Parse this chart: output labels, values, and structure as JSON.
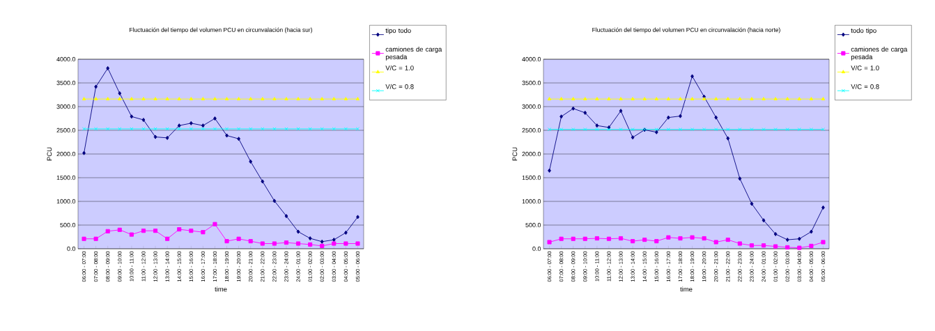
{
  "chart_data": [
    {
      "type": "line",
      "title": "Fluctuación del tiempo del volumen PCU en circunvalación (hacia sur)",
      "xlabel": "time",
      "ylabel": "PCU",
      "categories": [
        "06:00 - 07:00",
        "07:00 - 08:00",
        "08:00 - 09:00",
        "09:00 - 10:00",
        "10:00 - 11:00",
        "11:00 - 12:00",
        "12:00 - 13:00",
        "13:00 - 14:00",
        "14:00 - 15:00",
        "15:00 - 16:00",
        "16:00 - 17:00",
        "17:00 - 18:00",
        "18:00 - 19:00",
        "19:00 - 20:00",
        "20:00 - 21:00",
        "21:00 - 22:00",
        "22:00 - 23:00",
        "23:00 - 24:00",
        "24:00 - 01:00",
        "01:00 - 02:00",
        "02:00 - 03:00",
        "03:00 - 04:00",
        "04:00 - 05:00",
        "05:00 - 06:00"
      ],
      "series": [
        {
          "name": "tipo todo",
          "color": "#000080",
          "marker": "diamond",
          "values": [
            2020,
            3420,
            3810,
            3280,
            2790,
            2720,
            2360,
            2340,
            2600,
            2650,
            2600,
            2750,
            2390,
            2320,
            1840,
            1420,
            1010,
            690,
            360,
            220,
            150,
            190,
            340,
            670
          ]
        },
        {
          "name": "camiones de carga pesada",
          "color": "#ff00ff",
          "marker": "square",
          "values": [
            210,
            210,
            370,
            400,
            300,
            380,
            380,
            210,
            410,
            380,
            350,
            520,
            160,
            210,
            160,
            110,
            110,
            130,
            110,
            90,
            60,
            110,
            110,
            110
          ]
        },
        {
          "name": "V/C = 1.0",
          "color": "#ffff00",
          "marker": "triangle",
          "values": [
            3160,
            3160,
            3160,
            3160,
            3160,
            3160,
            3160,
            3160,
            3160,
            3160,
            3160,
            3160,
            3160,
            3160,
            3160,
            3160,
            3160,
            3160,
            3160,
            3160,
            3160,
            3160,
            3160,
            3160
          ]
        },
        {
          "name": "V/C = 0.8",
          "color": "#00ffff",
          "marker": "cross",
          "values": [
            2530,
            2530,
            2530,
            2530,
            2530,
            2530,
            2530,
            2530,
            2530,
            2530,
            2530,
            2530,
            2530,
            2530,
            2530,
            2530,
            2530,
            2530,
            2530,
            2530,
            2530,
            2530,
            2530,
            2530
          ]
        }
      ],
      "ylim": [
        0,
        4000
      ],
      "yticks": [
        {
          "value": 0,
          "label": "0.0"
        },
        {
          "value": 500,
          "label": "500.0"
        },
        {
          "value": 1000,
          "label": "1000.0"
        },
        {
          "value": 1500,
          "label": "1500.0"
        },
        {
          "value": 2000,
          "label": "2000.0"
        },
        {
          "value": 2500,
          "label": "2500.0"
        },
        {
          "value": 3000,
          "label": "3000.0"
        },
        {
          "value": 3500,
          "label": "3500.0"
        },
        {
          "value": 4000,
          "label": "4000.0"
        }
      ],
      "grid": "y",
      "legend": "top right"
    },
    {
      "type": "line",
      "title": "Fluctuación del tiempo del volumen PCU en circunvalación (hacia norte)",
      "xlabel": "time",
      "ylabel": "PCU",
      "categories": [
        "06:00 - 07:00",
        "07:00 - 08:00",
        "08:00 - 09:00",
        "09:00 - 10:00",
        "10:00 - 11:00",
        "11:00 - 12:00",
        "12:00 - 13:00",
        "13:00 - 14:00",
        "14:00 - 15:00",
        "15:00 - 16:00",
        "16:00 - 17:00",
        "17:00 - 18:00",
        "18:00 - 19:00",
        "19:00 - 20:00",
        "20:00 - 21:00",
        "21:00 - 22:00",
        "22:00 - 23:00",
        "23:00 - 24:00",
        "24:00 - 01:00",
        "01:00 - 02:00",
        "02:00 - 03:00",
        "03:00 - 04:00",
        "04:00 - 05:00",
        "05:00 - 06:00"
      ],
      "series": [
        {
          "name": "todo tipo",
          "color": "#000080",
          "marker": "diamond",
          "values": [
            1650,
            2790,
            2960,
            2870,
            2600,
            2560,
            2910,
            2350,
            2510,
            2460,
            2770,
            2800,
            3640,
            3210,
            2770,
            2330,
            1480,
            950,
            600,
            310,
            190,
            210,
            360,
            870
          ]
        },
        {
          "name": "camiones de carga pesada",
          "color": "#ff00ff",
          "marker": "square",
          "values": [
            140,
            210,
            210,
            210,
            220,
            210,
            220,
            160,
            190,
            160,
            240,
            220,
            240,
            220,
            140,
            190,
            110,
            70,
            70,
            50,
            30,
            20,
            60,
            140
          ]
        },
        {
          "name": "V/C = 1.0",
          "color": "#ffff00",
          "marker": "triangle",
          "values": [
            3160,
            3160,
            3160,
            3160,
            3160,
            3160,
            3160,
            3160,
            3160,
            3160,
            3160,
            3160,
            3160,
            3160,
            3160,
            3160,
            3160,
            3160,
            3160,
            3160,
            3160,
            3160,
            3160,
            3160
          ]
        },
        {
          "name": "V/C = 0.8",
          "color": "#00ffff",
          "marker": "cross",
          "values": [
            2520,
            2520,
            2520,
            2520,
            2520,
            2520,
            2520,
            2520,
            2520,
            2520,
            2520,
            2520,
            2520,
            2520,
            2520,
            2520,
            2520,
            2520,
            2520,
            2520,
            2520,
            2520,
            2520,
            2520
          ]
        }
      ],
      "ylim": [
        0,
        4000
      ],
      "yticks": [
        {
          "value": 0,
          "label": "0.0"
        },
        {
          "value": 500,
          "label": "500.0"
        },
        {
          "value": 1000,
          "label": "1000.0"
        },
        {
          "value": 1500,
          "label": "1500.0"
        },
        {
          "value": 2000,
          "label": "2000.0"
        },
        {
          "value": 2500,
          "label": "2500.0"
        },
        {
          "value": 3000,
          "label": "3000.0"
        },
        {
          "value": 3500,
          "label": "3500.0"
        },
        {
          "value": 4000,
          "label": "4000.0"
        }
      ],
      "grid": "y",
      "legend": "top right"
    }
  ]
}
